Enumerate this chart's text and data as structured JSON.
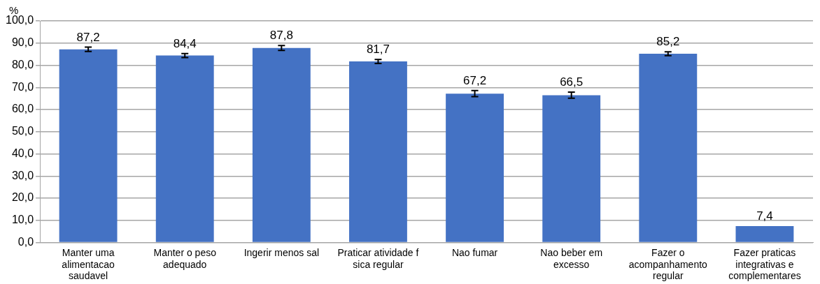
{
  "chart_data": {
    "type": "bar",
    "ylabel": "%",
    "categories": [
      "Manter uma alimentacao saudavel",
      "Manter o peso adequado",
      "Ingerir menos sal",
      "Praticar atividade f sica regular",
      "Nao fumar",
      "Nao beber em excesso",
      "Fazer o acompanhamento regular",
      "Fazer praticas integrativas e complementares"
    ],
    "values": [
      87.2,
      84.4,
      87.8,
      81.7,
      67.2,
      66.5,
      85.2,
      7.4
    ],
    "errors": [
      1.0,
      0.9,
      1.1,
      0.9,
      1.4,
      1.4,
      0.9,
      null
    ],
    "color": "#4472c4",
    "value_labels": [
      "87,2",
      "84,4",
      "87,8",
      "81,7",
      "67,2",
      "66,5",
      "85,2",
      "7,4"
    ],
    "ylim": [
      0,
      100
    ],
    "yticks": [
      {
        "value": 0,
        "label": "0,0"
      },
      {
        "value": 10,
        "label": "10,0"
      },
      {
        "value": 20,
        "label": "20,0"
      },
      {
        "value": 30,
        "label": "30,0"
      },
      {
        "value": 40,
        "label": "40,0"
      },
      {
        "value": 50,
        "label": "50,0"
      },
      {
        "value": 60,
        "label": "60,0"
      },
      {
        "value": 70,
        "label": "70,0"
      },
      {
        "value": 80,
        "label": "80,0"
      },
      {
        "value": 90,
        "label": "90,0"
      },
      {
        "value": 100,
        "label": "100,0"
      }
    ],
    "grid": "y",
    "legend": false
  }
}
